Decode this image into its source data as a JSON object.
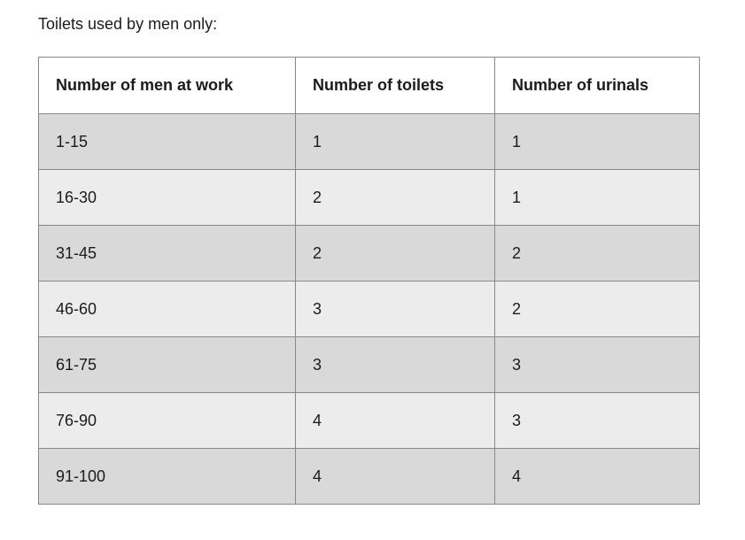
{
  "page": {
    "caption": "Toilets used by men only:"
  },
  "table": {
    "headers": [
      "Number of men at work",
      "Number of toilets",
      "Number of urinals"
    ],
    "rows": [
      [
        "1-15",
        "1",
        "1"
      ],
      [
        "16-30",
        "2",
        "1"
      ],
      [
        "31-45",
        "2",
        "2"
      ],
      [
        "46-60",
        "3",
        "2"
      ],
      [
        "61-75",
        "3",
        "3"
      ],
      [
        "76-90",
        "4",
        "3"
      ],
      [
        "91-100",
        "4",
        "4"
      ]
    ]
  },
  "colors": {
    "row_odd_bg": "#d9d9d9",
    "row_even_bg": "#ececec",
    "header_bg": "#ffffff",
    "border": "#888888",
    "text": "#1b1b1b",
    "page_bg": "#ffffff"
  }
}
